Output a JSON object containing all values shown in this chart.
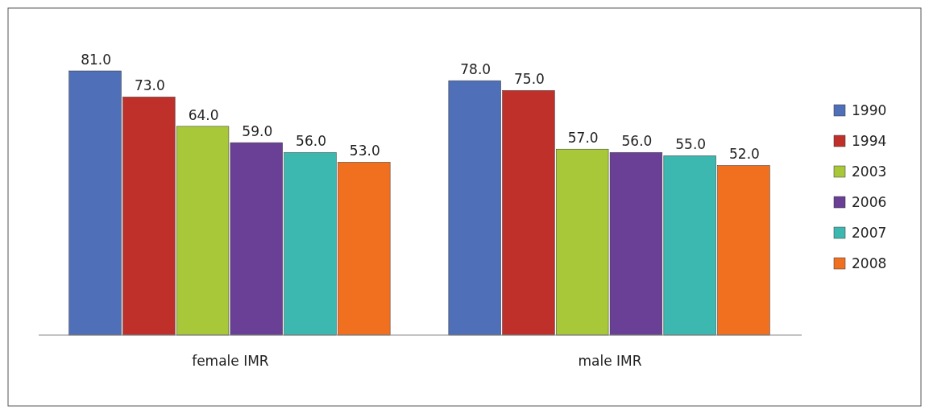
{
  "chart_data": {
    "type": "bar",
    "categories": [
      "female IMR",
      "male IMR"
    ],
    "series": [
      {
        "name": "1990",
        "color": "#4f6fb8",
        "values": [
          81,
          78
        ],
        "value_labels": [
          "81.0",
          "78.0"
        ]
      },
      {
        "name": "1994",
        "color": "#c0302a",
        "values": [
          73,
          75
        ],
        "value_labels": [
          "73.0",
          "75.0"
        ]
      },
      {
        "name": "2003",
        "color": "#a8c83a",
        "values": [
          64,
          57
        ],
        "value_labels": [
          "64.0",
          "57.0"
        ]
      },
      {
        "name": "2006",
        "color": "#6a3f96",
        "values": [
          59,
          56
        ],
        "value_labels": [
          "59.0",
          "56.0"
        ]
      },
      {
        "name": "2007",
        "color": "#3cb8b0",
        "values": [
          56,
          55
        ],
        "value_labels": [
          "56.0",
          "55.0"
        ]
      },
      {
        "name": "2008",
        "color": "#f07020",
        "values": [
          53,
          52
        ],
        "value_labels": [
          "53.0",
          "52.0"
        ]
      }
    ],
    "legend": "right",
    "grid": false
  }
}
